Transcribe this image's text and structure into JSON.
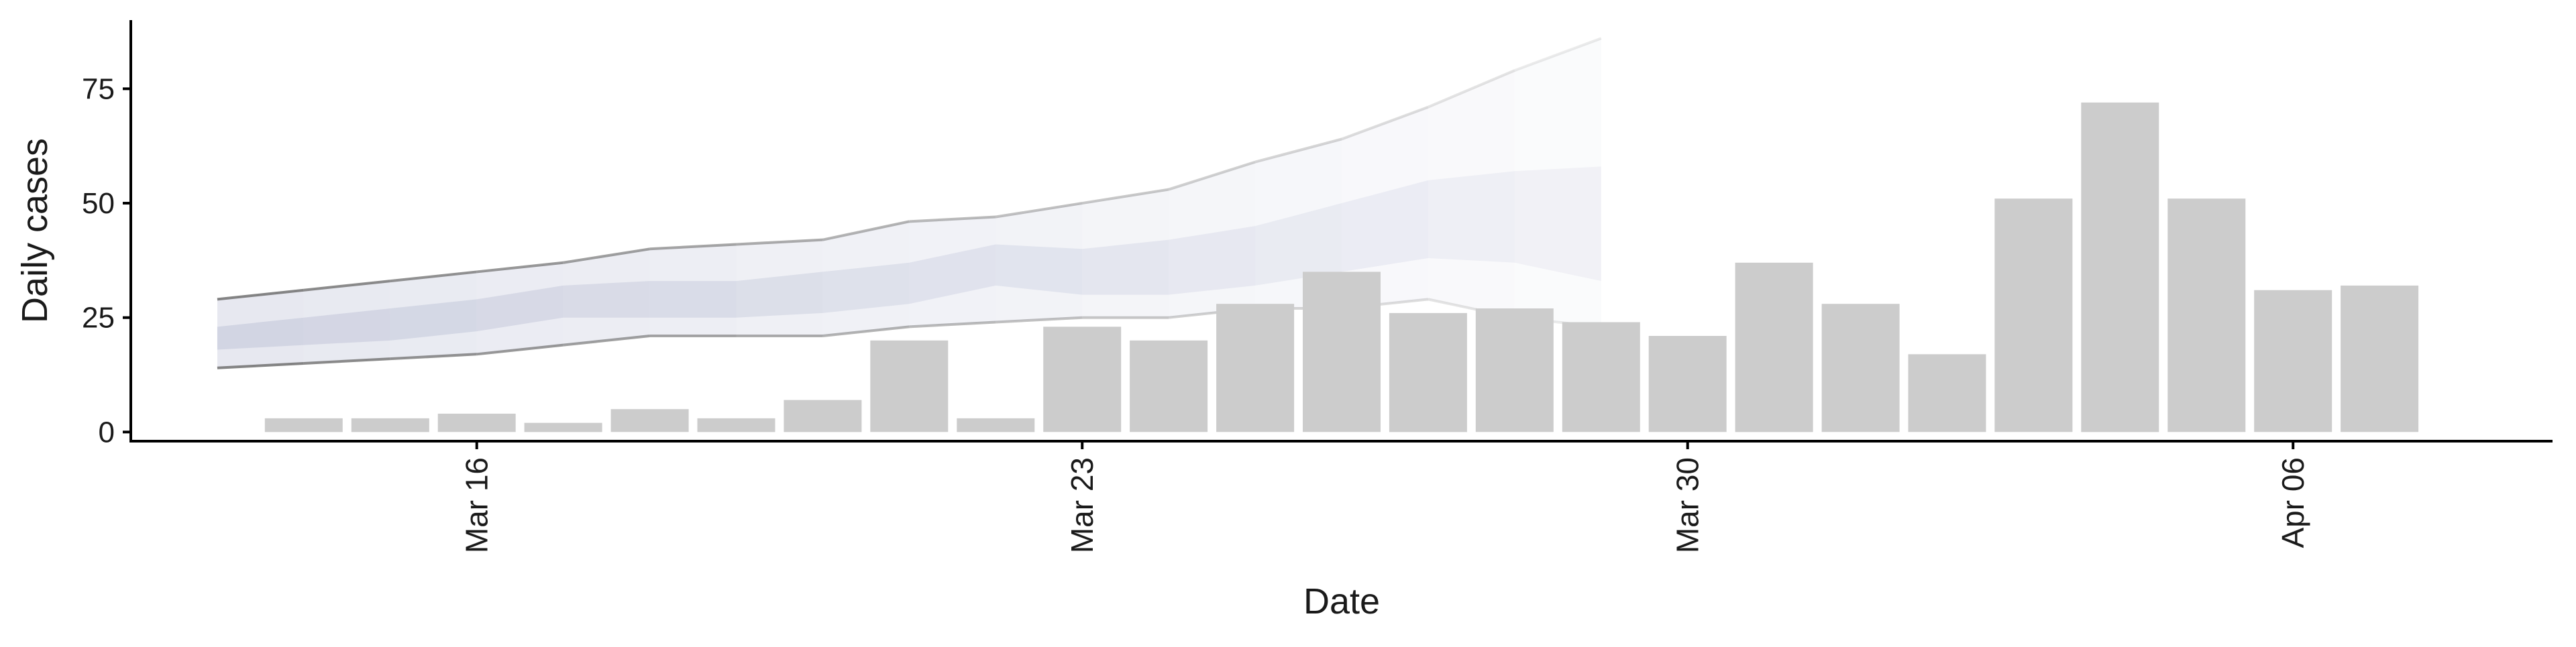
{
  "chart_data": {
    "type": "bar",
    "xlabel": "Date",
    "ylabel": "Daily cases",
    "grid": false,
    "legend": "none",
    "x_range": [
      "2020-03-12",
      "2020-04-09"
    ],
    "ylim": [
      -2,
      90
    ],
    "x_ticks": [
      {
        "date": "2020-03-16",
        "label": "Mar 16"
      },
      {
        "date": "2020-03-23",
        "label": "Mar 23"
      },
      {
        "date": "2020-03-30",
        "label": "Mar 30"
      },
      {
        "date": "2020-04-06",
        "label": "Apr 06"
      }
    ],
    "y_ticks": [
      0,
      25,
      50,
      75
    ],
    "bars": {
      "color": "#cccccc",
      "x": [
        "2020-03-14",
        "2020-03-15",
        "2020-03-16",
        "2020-03-17",
        "2020-03-18",
        "2020-03-19",
        "2020-03-20",
        "2020-03-21",
        "2020-03-22",
        "2020-03-23",
        "2020-03-24",
        "2020-03-25",
        "2020-03-26",
        "2020-03-27",
        "2020-03-28",
        "2020-03-29",
        "2020-03-30",
        "2020-03-31",
        "2020-04-01",
        "2020-04-02",
        "2020-04-03",
        "2020-04-04",
        "2020-04-05",
        "2020-04-06",
        "2020-04-07"
      ],
      "values": [
        3,
        3,
        4,
        2,
        5,
        3,
        7,
        20,
        3,
        23,
        20,
        28,
        35,
        26,
        27,
        24,
        21,
        37,
        28,
        17,
        51,
        72,
        51,
        31,
        32
      ]
    },
    "forecast": {
      "color": "#c5c9dc",
      "x": [
        "2020-03-13",
        "2020-03-14",
        "2020-03-15",
        "2020-03-16",
        "2020-03-17",
        "2020-03-18",
        "2020-03-19",
        "2020-03-20",
        "2020-03-21",
        "2020-03-22",
        "2020-03-23",
        "2020-03-24",
        "2020-03-25",
        "2020-03-26",
        "2020-03-27",
        "2020-03-28",
        "2020-03-29"
      ],
      "lower_90": [
        14,
        15,
        16,
        17,
        19,
        21,
        21,
        21,
        23,
        24,
        25,
        25,
        27,
        27,
        29,
        25,
        23
      ],
      "upper_90": [
        29,
        31,
        33,
        35,
        37,
        40,
        41,
        42,
        46,
        47,
        50,
        53,
        59,
        64,
        71,
        79,
        86
      ],
      "lower_50": [
        18,
        19,
        20,
        22,
        25,
        25,
        25,
        26,
        28,
        32,
        30,
        30,
        32,
        35,
        38,
        37,
        33
      ],
      "upper_50": [
        23,
        25,
        27,
        29,
        32,
        33,
        33,
        35,
        37,
        41,
        40,
        42,
        45,
        50,
        55,
        57,
        58
      ]
    }
  }
}
